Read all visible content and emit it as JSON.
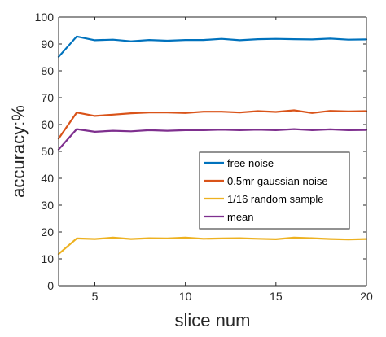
{
  "chart_data": {
    "type": "line",
    "xlabel": "slice num",
    "ylabel": "accuracy:%",
    "xlim": [
      3,
      20
    ],
    "ylim": [
      0,
      100
    ],
    "xticks": [
      5,
      10,
      15,
      20
    ],
    "yticks": [
      0,
      10,
      20,
      30,
      40,
      50,
      60,
      70,
      80,
      90,
      100
    ],
    "grid": false,
    "legend_position": "right",
    "x": [
      3,
      4,
      5,
      6,
      7,
      8,
      9,
      10,
      11,
      12,
      13,
      14,
      15,
      16,
      17,
      18,
      19,
      20
    ],
    "series": [
      {
        "name": "free noise",
        "color": "#0072bd",
        "values": [
          85.2,
          92.8,
          91.4,
          91.6,
          91.0,
          91.5,
          91.2,
          91.5,
          91.5,
          91.9,
          91.4,
          91.8,
          91.9,
          91.8,
          91.7,
          92.0,
          91.6,
          91.7
        ]
      },
      {
        "name": "0.5mr gaussian noise",
        "color": "#d95319",
        "values": [
          54.8,
          64.5,
          63.2,
          63.7,
          64.2,
          64.5,
          64.5,
          64.3,
          64.8,
          64.8,
          64.5,
          65.0,
          64.7,
          65.3,
          64.3,
          65.1,
          64.9,
          65.0
        ]
      },
      {
        "name": "1/16 random sample",
        "color": "#edb120",
        "values": [
          11.8,
          17.6,
          17.4,
          17.9,
          17.4,
          17.7,
          17.6,
          17.9,
          17.5,
          17.6,
          17.7,
          17.5,
          17.3,
          17.9,
          17.7,
          17.4,
          17.2,
          17.4
        ]
      },
      {
        "name": "mean",
        "color": "#7e2f8e",
        "values": [
          50.7,
          58.3,
          57.3,
          57.7,
          57.5,
          57.9,
          57.7,
          57.9,
          57.9,
          58.1,
          57.9,
          58.1,
          57.9,
          58.3,
          57.9,
          58.2,
          57.9,
          58.0
        ]
      }
    ]
  }
}
